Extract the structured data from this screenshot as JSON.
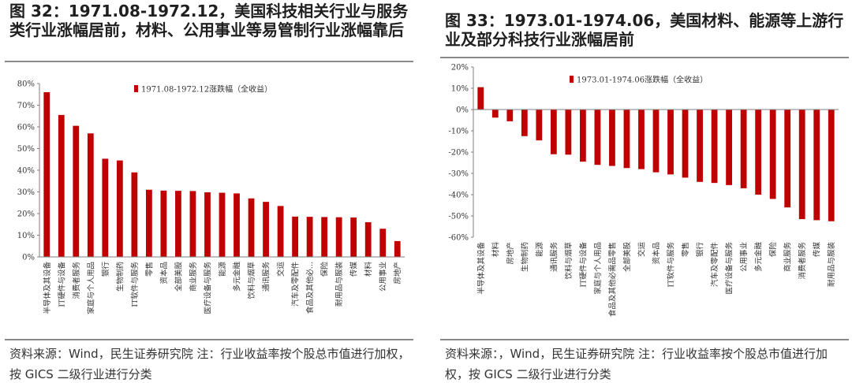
{
  "panels": [
    {
      "title": "图 32：1971.08-1972.12，美国科技相关行业与服务类行业涨幅居前，材料、公用事业等易管制行业涨幅靠后",
      "source": "资料来源：Wind，民生证券研究院 注：行业收益率按个股总市值进行加权，按 GICS 二级行业进行分类"
    },
    {
      "title": "图 33：1973.01-1974.06，美国材料、能源等上游行业及部分科技行业涨幅居前",
      "source": "资料来源：，Wind，民生证券研究院 注：行业收益率按个股总市值进行加权，按 GICS 二级行业进行分类"
    }
  ],
  "colors": {
    "bar": "#C00000",
    "axis": "#7f7f7f"
  },
  "chart_data": [
    {
      "type": "bar",
      "title": "",
      "xlabel": "",
      "ylabel": "",
      "legend": "1971.08-1972.12涨跌幅（全收益）",
      "legend_position": "top",
      "ylim": [
        0,
        80
      ],
      "yticks": [
        0,
        10,
        20,
        30,
        40,
        50,
        60,
        70,
        80
      ],
      "ytick_labels": [
        "0%",
        "10%",
        "20%",
        "30%",
        "40%",
        "50%",
        "60%",
        "70%",
        "80%"
      ],
      "categories": [
        "半导体及其设备",
        "IT硬件与设备",
        "消费者服务",
        "家庭与个人用品",
        "银行",
        "生物制药",
        "IT软件与服务",
        "零售",
        "资本品",
        "全部美股",
        "商业服务",
        "医疗设备与服务",
        "能源",
        "多元金融",
        "饮料与烟草",
        "通讯服务",
        "交运",
        "汽车及零配件",
        "食品及其他必...",
        "保险",
        "耐用品与服装",
        "传媒",
        "材料",
        "公用事业",
        "房地产"
      ],
      "values": [
        76,
        65.5,
        60.5,
        57,
        45.3,
        44.5,
        39,
        31,
        30.6,
        30.5,
        30.4,
        29.8,
        29.6,
        29.3,
        27,
        25.4,
        23.5,
        18.6,
        18.5,
        18.4,
        18.3,
        18.2,
        16,
        13,
        7.3
      ]
    },
    {
      "type": "bar",
      "title": "",
      "xlabel": "",
      "ylabel": "",
      "legend": "1973.01-1974.06涨跌幅（全收益）",
      "legend_position": "top",
      "ylim": [
        -60,
        20
      ],
      "yticks": [
        -60,
        -50,
        -40,
        -30,
        -20,
        -10,
        0,
        10,
        20
      ],
      "ytick_labels": [
        "-60%",
        "-50%",
        "-40%",
        "-30%",
        "-20%",
        "-10%",
        "0%",
        "10%",
        "20%"
      ],
      "categories": [
        "半导体及其设备",
        "材料",
        "房地产",
        "生物制药",
        "能源",
        "通讯服务",
        "饮料与烟草",
        "IT硬件与设备",
        "家庭与个人用品",
        "食品及其他必需品零售",
        "全部美股",
        "交运",
        "资本品",
        "IT软件与服务",
        "零售",
        "银行",
        "汽车及零配件",
        "医疗设备与服务",
        "公用事业",
        "多元金融",
        "保险",
        "商业服务",
        "消费者服务",
        "传媒",
        "耐用品与服装"
      ],
      "values": [
        10.5,
        -3.8,
        -5.5,
        -12.5,
        -14.5,
        -21,
        -21.2,
        -24.5,
        -26,
        -26.5,
        -27.5,
        -28,
        -29.5,
        -30.5,
        -32,
        -34,
        -34.5,
        -35.5,
        -37,
        -40,
        -42,
        -46,
        -51.5,
        -52,
        -52.5
      ]
    }
  ]
}
